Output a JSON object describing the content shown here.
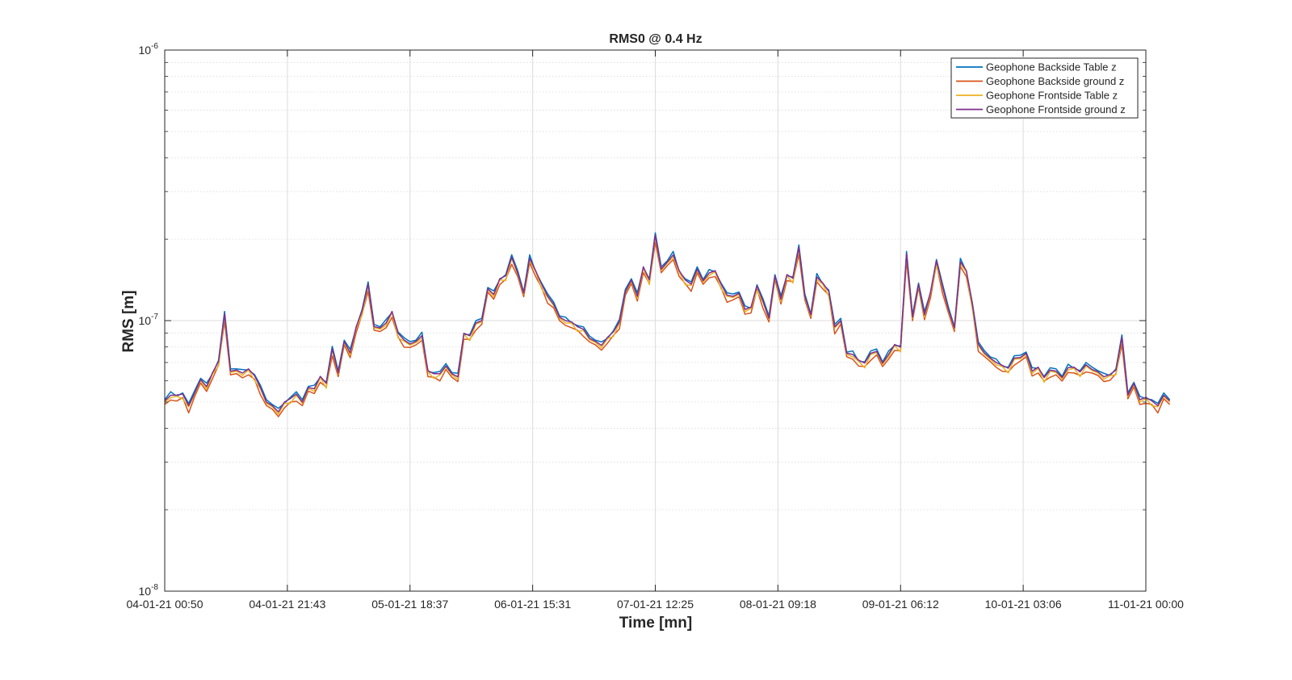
{
  "chart_data": {
    "type": "line",
    "title": "RMS0 @ 0.4 Hz",
    "xlabel": "Time [mn]",
    "ylabel": "RMS [m]",
    "yscale": "log",
    "ylim": [
      1e-08,
      1e-06
    ],
    "y_ticks": [
      {
        "value": 1e-08,
        "base": "10",
        "exp": "-8"
      },
      {
        "value": 1e-07,
        "base": "10",
        "exp": "-7"
      },
      {
        "value": 1e-06,
        "base": "10",
        "exp": "-6"
      }
    ],
    "x_ticks": [
      {
        "index": 0,
        "label": "04-01-21 00:50"
      },
      {
        "index": 20.5,
        "label": "04-01-21 21:43"
      },
      {
        "index": 41,
        "label": "05-01-21 18:37"
      },
      {
        "index": 61.5,
        "label": "06-01-21 15:31"
      },
      {
        "index": 82,
        "label": "07-01-21 12:25"
      },
      {
        "index": 102.5,
        "label": "08-01-21 09:18"
      },
      {
        "index": 123,
        "label": "09-01-21 06:12"
      },
      {
        "index": 143.5,
        "label": "10-01-21 03:06"
      },
      {
        "index": 164,
        "label": "11-01-21 00:00"
      }
    ],
    "x_range": [
      0,
      164
    ],
    "grid": true,
    "legend_position": "top-right",
    "series": [
      {
        "name": "Geophone Backside Table z",
        "color": "#0072BD"
      },
      {
        "name": "Geophone Backside ground z",
        "color": "#D95319"
      },
      {
        "name": "Geophone Frontside Table z",
        "color": "#EDB120"
      },
      {
        "name": "Geophone Frontside ground z",
        "color": "#7E2F8E"
      }
    ],
    "base_values_e8": [
      5.0,
      5.3,
      5.2,
      5.3,
      4.8,
      5.4,
      6.0,
      5.7,
      6.3,
      7.0,
      10.5,
      6.5,
      6.5,
      6.4,
      6.5,
      6.2,
      5.6,
      5.0,
      4.8,
      4.6,
      4.9,
      5.1,
      5.3,
      5.0,
      5.6,
      5.6,
      6.1,
      5.8,
      7.8,
      6.4,
      8.3,
      7.6,
      9.3,
      10.8,
      13.5,
      9.5,
      9.3,
      9.8,
      10.6,
      8.9,
      8.4,
      8.2,
      8.3,
      8.8,
      6.4,
      6.3,
      6.3,
      6.8,
      6.3,
      6.2,
      8.8,
      8.7,
      9.7,
      10.0,
      13.0,
      12.5,
      14.0,
      14.5,
      17.0,
      15.0,
      12.5,
      17.0,
      15.0,
      13.5,
      12.2,
      11.5,
      10.2,
      10.0,
      9.7,
      9.4,
      9.2,
      8.6,
      8.3,
      8.1,
      8.5,
      9.0,
      9.8,
      12.8,
      14.0,
      12.3,
      15.5,
      14.0,
      20.5,
      15.5,
      16.3,
      17.5,
      15.0,
      14.0,
      13.5,
      15.5,
      13.9,
      15.0,
      15.0,
      13.5,
      12.3,
      12.3,
      12.5,
      11.0,
      11.0,
      13.3,
      11.7,
      10.2,
      14.5,
      12.0,
      14.5,
      14.2,
      18.5,
      12.3,
      10.4,
      14.5,
      13.5,
      12.7,
      9.4,
      10.0,
      7.5,
      7.5,
      7.0,
      6.9,
      7.5,
      7.7,
      6.9,
      7.5,
      8.0,
      7.9,
      17.5,
      10.3,
      13.5,
      10.5,
      12.5,
      16.5,
      13.3,
      11.0,
      9.3,
      16.5,
      15.0,
      11.4,
      8.1,
      7.6,
      7.2,
      7.0,
      6.7,
      6.6,
      7.2,
      7.3,
      7.5,
      6.5,
      6.6,
      6.1,
      6.5,
      6.5,
      6.1,
      6.7,
      6.6,
      6.4,
      6.8,
      6.6,
      6.4,
      6.2,
      6.2,
      6.5,
      8.6,
      5.3,
      5.8,
      5.1,
      5.1,
      5.0,
      4.8,
      5.3,
      5.0
    ],
    "series_offsets": [
      [
        0.02,
        0.03,
        0.01,
        0.02,
        0.03,
        0.02
      ],
      [
        -0.02,
        -0.04,
        -0.03,
        -0.02,
        -0.05,
        -0.03
      ],
      [
        0.0,
        -0.02,
        0.01,
        -0.03,
        0.0,
        -0.01
      ],
      [
        0.01,
        0.0,
        0.02,
        0.01,
        0.01,
        0.0
      ]
    ]
  }
}
